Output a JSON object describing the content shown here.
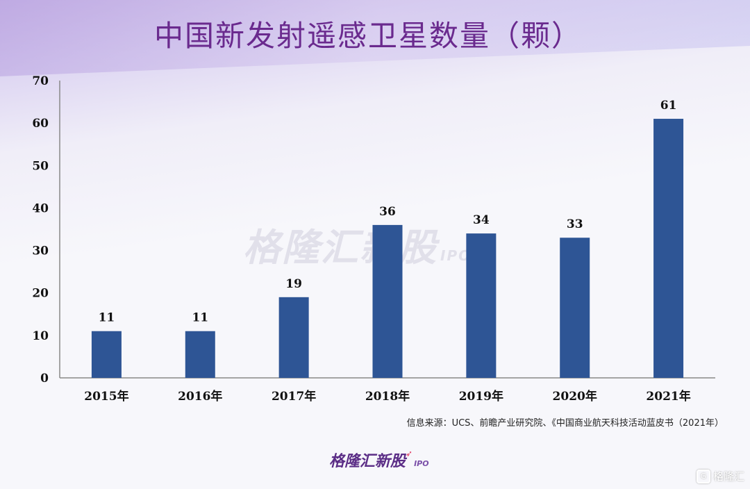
{
  "title": "中国新发射遥感卫星数量（颗）",
  "source": "信息来源：UCS、前瞻产业研究院、《中国商业航天科技活动蓝皮书（2021年）",
  "watermark": {
    "text": "格隆汇新股",
    "suffix": "IPO"
  },
  "logo": {
    "text": "格隆汇新股",
    "suffix": "IPO"
  },
  "corner_mark": {
    "text": "格隆汇"
  },
  "colors": {
    "bar": "#2e5595",
    "title": "#6a2a8e"
  },
  "chart_data": {
    "type": "bar",
    "title": "中国新发射遥感卫星数量（颗）",
    "categories": [
      "2015年",
      "2016年",
      "2017年",
      "2018年",
      "2019年",
      "2020年",
      "2021年"
    ],
    "values": [
      11,
      11,
      19,
      36,
      34,
      33,
      61
    ],
    "ylim": [
      0,
      70
    ],
    "yticks": [
      0,
      10,
      20,
      30,
      40,
      50,
      60,
      70
    ],
    "xlabel": "",
    "ylabel": "",
    "grid": false,
    "legend": "none"
  }
}
